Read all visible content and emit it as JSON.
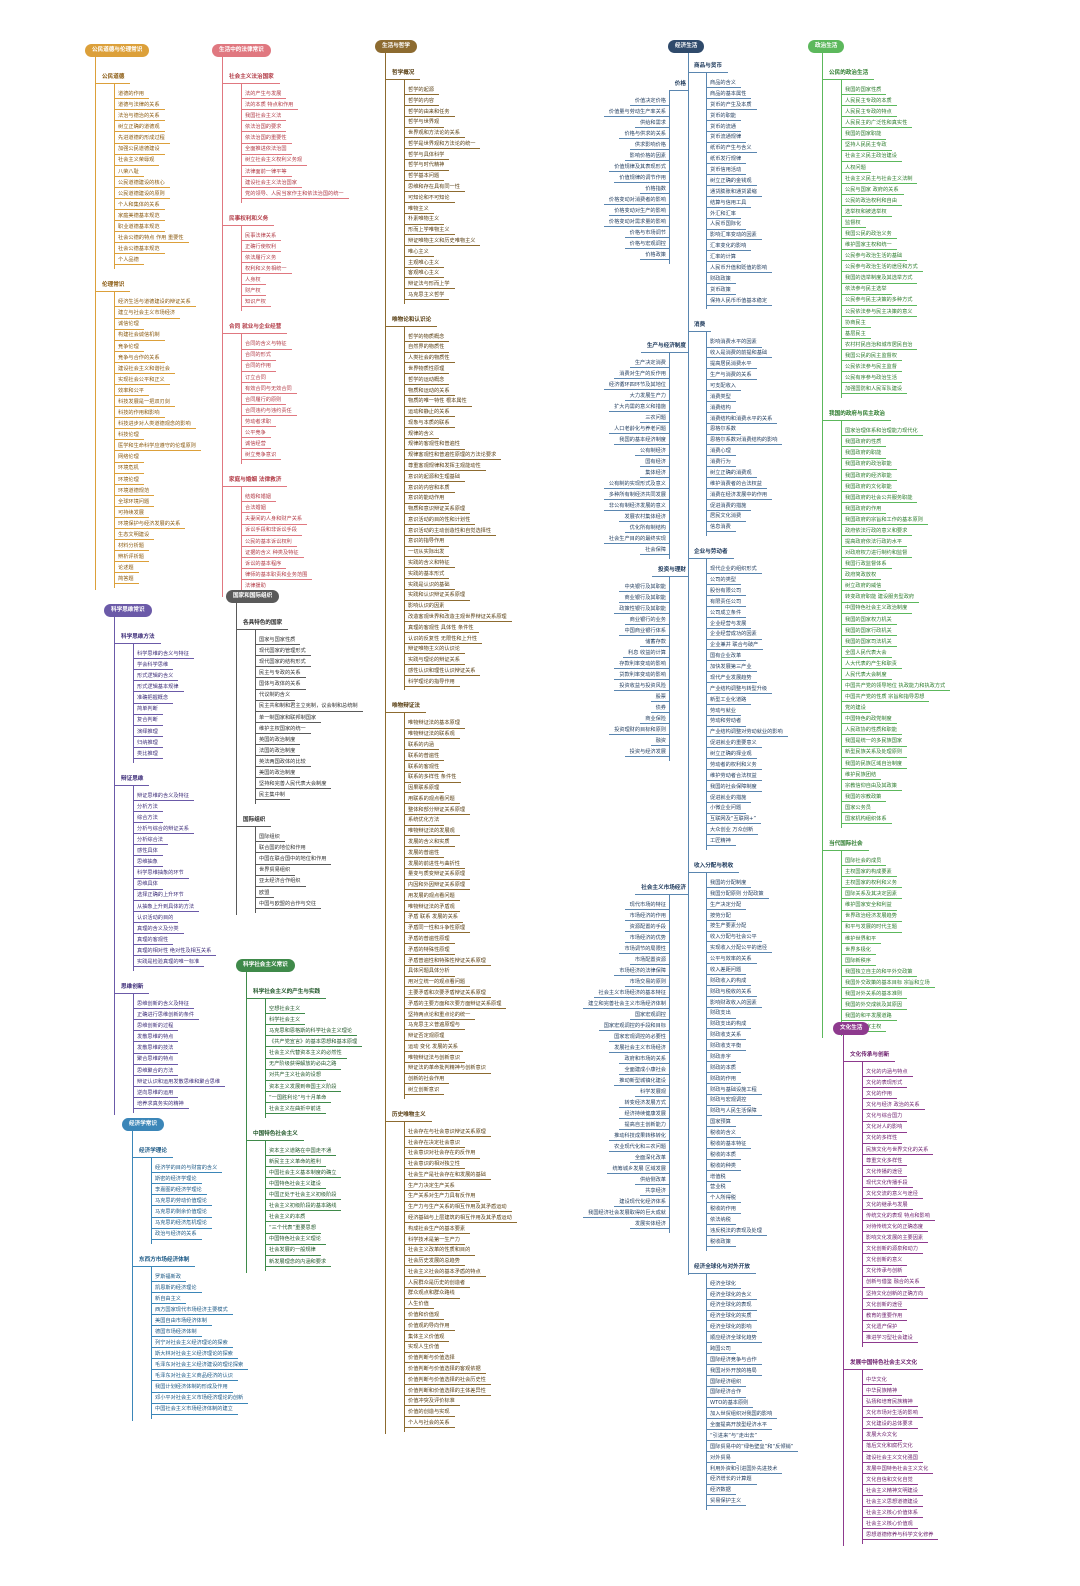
{
  "sections": {
    "ethics": {
      "title": "公民道德与伦理常识",
      "subs": [
        {
          "label": "公民道德",
          "items": [
            "道德的作用",
            "道德与法律的关系",
            "法治与德治的关系",
            "树立正确的道德观",
            "先进道德的形成过程",
            "加强公民道德建设",
            "社会主义荣辱观",
            "八荣八耻",
            "公民道德建设的核心",
            "公民道德建设的原则",
            "个人和集体的关系",
            "家庭美德基本规范",
            "职业道德基本规范",
            "社会公德的特点 作用 重要性",
            "社会公德基本规范",
            "个人品德"
          ]
        },
        {
          "label": "伦理常识",
          "items": [
            "经济生活与道德建设的辩证关系",
            "建立与社会主义市场经济",
            "诚信伦理",
            "构建社会诚信机制",
            "竞争伦理",
            "竞争与合作的关系",
            "建设社会主义和谐社会",
            "实现社会公平和正义",
            "效率和公平",
            "科技发展是一把双刃剑",
            "科技的作用和影响",
            "科技进步对人类道德观念的影响",
            "科技伦理",
            "医学和生命科学应遵守的伦理原则",
            "网络伦理",
            "环境危机",
            "环境伦理",
            "环境道德规范",
            "全球环境问题",
            "可持续发展",
            "环境保护与经济发展的关系",
            "生态文明建设",
            "材料分析题",
            "辨析评析题",
            "论述题",
            "简答题"
          ]
        }
      ]
    },
    "law": {
      "title": "生活中的法律常识",
      "subs": [
        {
          "label": "社会主义法治国家",
          "items": [
            "法的产生与发展",
            "法的本质 特点和作用",
            "我国社会主义法",
            "依法治国的要求",
            "依法治国的重要性",
            "全面推进依法治国",
            "树立社会主义权利义务观",
            "法律面前一律平等",
            "建设社会主义法治国家",
            "党的领导、人民当家作主和依法治国的统一"
          ]
        },
        {
          "label": "民事权利和义务",
          "items": [
            "民事法律关系",
            "正确行使权利",
            "依法履行义务",
            "权利和义务相统一",
            "人身权",
            "财产权",
            "知识产权"
          ]
        },
        {
          "label": "合同 就业与企业经营",
          "items": [
            "合同的含义与特征",
            "合同的形式",
            "合同的作用",
            "订立合同",
            "有效合同与无效合同",
            "合同履行的原则",
            "合同违约与违约责任",
            "劳动者求职",
            "公平竞争",
            "诚信经营",
            "树立竞争意识"
          ]
        },
        {
          "label": "家庭与婚姻 法律救济",
          "items": [
            "结婚和婚姻",
            "合法婚姻",
            "夫妻间的人身和财产关系",
            "诉讼手段和非诉讼手段",
            "公民的基本诉讼权利",
            "证据的含义 种类及特征",
            "诉讼的基本程序",
            "律师的基本职责和业务范围",
            "法律援助"
          ]
        }
      ]
    },
    "phil": {
      "title": "生活与哲学",
      "subs": [
        {
          "label": "哲学概况",
          "items": [
            "哲学的起源",
            "哲学的内容",
            "哲学的由来和任务",
            "哲学与世界观",
            "世界观和方法论的关系",
            "哲学是世界观和方法论的统一",
            "哲学与具体科学",
            "哲学与时代精神",
            "哲学基本问题",
            "思维和存在具有同一性",
            "可知论和不可知论",
            "唯物主义",
            "朴素唯物主义",
            "形而上学唯物主义",
            "辩证唯物主义和历史唯物主义",
            "唯心主义",
            "主观唯心主义",
            "客观唯心主义",
            "辩证法与形而上学",
            "马克思主义哲学"
          ]
        },
        {
          "label": "唯物论和认识论",
          "items": [
            "哲学的物质概念",
            "自然界的物质性",
            "人类社会的物质性",
            "世界物质性原理",
            "哲学的运动概念",
            "物质和运动的关系",
            "物质的唯一特性 根本属性",
            "运动和静止的关系",
            "现象与本质的联系",
            "规律的含义",
            "规律的客观性和普遍性",
            "规律客观性和普遍性原理的方法论要求",
            "尊重客观规律和发挥主观能动性",
            "意识的起源和生理基础",
            "意识的内容和本质",
            "意识的能动作用",
            "物质和意识辩证关系原理",
            "意识活动的目的性和计划性",
            "意识活动的主动创造性和自觉选择性",
            "意识的指导作用",
            "一切从实际出发",
            "实践的含义和特征",
            "实践的基本形式",
            "实践是认识的基础",
            "实践和认识辩证关系原理",
            "影响认识的因素",
            "改造客观世界和改造主观世界辩证关系原理",
            "真理的客观性 具体性 条件性",
            "认识的反复性 无限性和上升性",
            "辩证唯物主义的认识论",
            "实践与理论的辩证关系",
            "感性认识和理性认识辩证关系",
            "科学理论的指导作用"
          ]
        },
        {
          "label": "唯物辩证法",
          "items": [
            "唯物辩证法的基本原理",
            "唯物辩证法的联系观",
            "联系的内涵",
            "联系的普遍性",
            "联系的客观性",
            "联系的多样性 条件性",
            "因果联系原理",
            "用联系的观点看问题",
            "整体和部分辩证关系原理",
            "系统优化方法",
            "唯物辩证法的发展观",
            "发展的含义和实质",
            "发展的普遍性",
            "发展的前进性与曲折性",
            "量变与质变辩证关系原理",
            "内因和外因辩证关系原理",
            "用发展的观点看问题",
            "唯物辩证法的矛盾观",
            "矛盾 联系 发展的关系",
            "矛盾同一性和斗争性原理",
            "矛盾的普遍性原理",
            "矛盾的特殊性原理",
            "矛盾普遍性和特殊性辩证关系原理",
            "具体问题具体分析",
            "用对立统一的观点看问题",
            "主要矛盾和次要矛盾辩证关系原理",
            "矛盾的主要方面和次要方面辩证关系原理",
            "坚持两点论和重点论的统一",
            "马克思主义普遍原理与",
            "辩证否定观原理",
            "运动 变化 发展的关系",
            "唯物辩证法与创新意识",
            "辩证法的革命批判精神与创新意识",
            "创新的社会作用",
            "树立创新意识"
          ]
        },
        {
          "label": "历史唯物主义",
          "items": [
            "社会存在与社会意识辩证关系原理",
            "社会存在决定社会意识",
            "社会意识对社会存在的反作用",
            "社会意识的相对独立性",
            "社会生产是社会存在和发展的基础",
            "生产力决定生产关系",
            "生产关系对生产力具有反作用",
            "生产力与生产关系的相互作用及其矛盾运动",
            "经济基础与上层建筑的相互作用及其矛盾运动",
            "构成社会生产的基本要素",
            "科学技术是第一生产力",
            "社会主义改革的性质和目的",
            "社会历史发展的总趋势",
            "社会主义社会的基本矛盾的特点",
            "人民群众是历史的创造者",
            "群众观点和群众路线",
            "人生价值",
            "价值和价值观",
            "价值观的导向作用",
            "集体主义价值观",
            "实现人生价值",
            "价值判断与价值选择",
            "价值判断与价值选择的客观依据",
            "价值判断与价值选择的社会历史性",
            "价值判断和价值选择的主体差异性",
            "价值冲突及评价标准",
            "价值的创造与实现",
            "个人与社会的关系"
          ]
        }
      ]
    },
    "econ": {
      "title": "经济生活",
      "left": [
        {
          "label": "价格",
          "items": [
            "价值决定价格",
            "价值量与劳动生产率关系",
            "供给和需求",
            "价格与供求的关系",
            "供求影响价格",
            "影响价格的因素",
            "价值规律及其表现形式",
            "价值规律的调节作用",
            "价格指数",
            "价格变动对消费者的影响",
            "价格变动对生产的影响",
            "价格变动对需求量的影响",
            "价格与市场调节",
            "价格与宏观调控",
            "价格政策"
          ]
        },
        {
          "label": "生产与经济制度",
          "items": [
            "生产决定消费",
            "消费对生产的反作用",
            "经济循环四环节及其地位",
            "大力发展生产力",
            "扩大内需的意义和措施",
            "三农问题",
            "人口老龄化与养老问题",
            "我国的基本经济制度",
            "公有制经济",
            "国有经济",
            "集体经济",
            "公有制的实现形式及意义",
            "多种所有制经济共同发展",
            "非公有制经济发展的意义",
            "发展农村集体经济",
            "优化所有制结构",
            "社会生产目的的最终实现",
            "社会保障"
          ]
        },
        {
          "label": "投资与理财",
          "items": [
            "中央银行及其职能",
            "商业银行及其职能",
            "政策性银行及其职能",
            "商业银行的业务",
            "中国商业银行体系",
            "储蓄存款",
            "利息 收益的计算",
            "存款利率变动的影响",
            "贷款利率变动的影响",
            "投资收益与投资风险",
            "股票",
            "债券",
            "商业保险",
            "投资理财的目标和原则",
            "融资",
            "投资与经济发展"
          ]
        },
        {
          "label": "社会主义市场经济",
          "items": [
            "现代市场的特征",
            "市场经济的作用",
            "资源配置的手段",
            "市场经济的优势",
            "市场调节的局限性",
            "市场配置资源",
            "市场经济的法律保障",
            "市场交易的原则",
            "社会主义市场经济的基本特征",
            "建立和完善社会主义市场经济体制",
            "国家宏观调控",
            "国家宏观调控的手段和目标",
            "国家宏观调控的必要性",
            "发展社会主义市场经济",
            "政府和市场的关系",
            "全面建成小康社会",
            "推动新型城镇化建设",
            "科学发展观",
            "转变经济发展方式",
            "经济持续健康发展",
            "提高自主创新能力",
            "推动科技成果转移转化",
            "农业现代化和三农问题",
            "全面深化改革",
            "统筹城乡发展 区域发展",
            "供给侧改革",
            "共享经济",
            "建设现代化经济体系",
            "我国经济社会发展取得的巨大成就",
            "发展实体经济"
          ]
        }
      ],
      "right": [
        {
          "label": "商品与货币",
          "items": [
            "商品的含义",
            "商品的基本属性",
            "货币的产生及本质",
            "货币的职能",
            "货币的流通",
            "货币流通规律",
            "纸币的产生与含义",
            "纸币发行规律",
            "货币信用活动",
            "树立正确的金钱观",
            "通货膨胀和通货紧缩",
            "结算与信用工具",
            "外汇和汇率",
            "人民币国际化",
            "影响汇率变动的因素",
            "汇率变化的影响",
            "汇率的计算",
            "人民币升值和贬值的影响",
            "财政政策",
            "货币政策",
            "保持人民币币值基本稳定"
          ]
        },
        {
          "label": "消费",
          "items": [
            "影响消费水平的因素",
            "收入是消费的前提和基础",
            "提高居民消费水平",
            "生产与消费的关系",
            "可支配收入",
            "消费类型",
            "消费结构",
            "消费结构和消费水平的关系",
            "恩格尔系数",
            "恩格尔系数对消费结构的影响",
            "消费心理",
            "消费行为",
            "树立正确的消费观",
            "维护消费者的合法权益",
            "消费在经济发展中的作用",
            "促进消费的措施",
            "居民文化消费",
            "信息消费"
          ]
        },
        {
          "label": "企业与劳动者",
          "items": [
            "现代企业的组织形式",
            "公司的类型",
            "股份有限公司",
            "有限责任公司",
            "公司成立条件",
            "企业经营与发展",
            "企业经营成功的因素",
            "企业兼并 联合与破产",
            "国有企业改革",
            "加快发展第三产业",
            "现代产业发展趋势",
            "产业结构调整与转型升级",
            "新型工业化道路",
            "劳动与就业",
            "劳动和劳动者",
            "产业结构调整对劳动就业的影响",
            "促进就业的重要意义",
            "树立正确的择业观",
            "劳动者的权利和义务",
            "维护劳动者合法权益",
            "我国的社会保障制度",
            "促进就业的措施",
            "小微企业问题",
            "互联网及“互联网+”",
            "大众创业 万众创新",
            "工匠精神"
          ]
        },
        {
          "label": "收入分配与税收",
          "items": [
            "我国的分配制度",
            "我国分配原则 分配政策",
            "生产决定分配",
            "按劳分配",
            "按生产要素分配",
            "收入分配与社会公平",
            "实现收入分配公平的途径",
            "公平与效率的关系",
            "收入差距问题",
            "财政收入的构成",
            "财政与税收的关系",
            "影响财政收入的因素",
            "财政支出",
            "财政支出的构成",
            "财政收支关系",
            "财政收支平衡",
            "财政赤字",
            "财政的本质",
            "财政的作用",
            "财政与基础设施工程",
            "财政与宏观调控",
            "财政与人民生活保障",
            "国家预算",
            "税收的含义",
            "税收的基本特征",
            "税收的本质",
            "税收的种类",
            "增值税",
            "营业税",
            "个人所得税",
            "税收的作用",
            "依法纳税",
            "违反税法的表现及处理",
            "税收政策"
          ]
        },
        {
          "label": "经济全球化与对外开放",
          "items": [
            "经济全球化",
            "经济全球化的含义",
            "经济全球化的表现",
            "经济全球化的实质",
            "经济全球化的影响",
            "顺应经济全球化趋势",
            "跨国公司",
            "国际经济竞争与合作",
            "我国对外开放的格局",
            "国际经济组织",
            "国际经济合作",
            "WTO的基本原则",
            "加入世贸组织对我国的影响",
            "全面提高开放型经济水平",
            "“引进来”与“走出去”",
            "国际贸易中的“绿色壁垒”和“反倾销”",
            "对外贸易",
            "利用外资和引进国外先进技术",
            "经济增长的计算题",
            "经济数据",
            "贸易保护主义"
          ]
        }
      ]
    },
    "pol": {
      "title": "政治生活",
      "subs": [
        {
          "label": "公民的政治生活",
          "items": [
            "我国的国家性质",
            "人民民主专政的本质",
            "人民民主专政的特点",
            "人民民主的广泛性和真实性",
            "我国的国家职能",
            "坚持人民民主专政",
            "社会主义民主政治建设",
            "人权问题",
            "社会主义民主与社会主义法制",
            "公民与国家 政府的关系",
            "公民的政治权利和自由",
            "选举权和被选举权",
            "监督权",
            "我国公民的政治义务",
            "维护国家主权和统一",
            "公民参与政治生活的基础",
            "公民参与政治生活的途径和方式",
            "我国的选举制度及其选举方式",
            "依法参与民主选举",
            "公民参与民主决策的多种方式",
            "公民依法参与民主决策的意义",
            "协商民主",
            "基层民主",
            "农村村民自治和城市居民自治",
            "我国公民的民主监督权",
            "公民依法参与民主监督",
            "公民有序参与政治生活",
            "加强国防和人民军队建设"
          ]
        },
        {
          "label": "我国的政府与民主政治",
          "items": [
            "国家治理体系和治理能力现代化",
            "我国政府的性质",
            "我国政府的职能",
            "我国政府的政治职能",
            "我国政府的经济职能",
            "我国政府的文化职能",
            "我国政府的社会公共服务职能",
            "我国政府的作用",
            "我国政府的宗旨和工作的基本原则",
            "政府依法行政的意义和要求",
            "提高政府依法行政的水平",
            "对政府权力进行制约和监督",
            "我国行政监督体系",
            "政府简政放权",
            "树立政府的威信",
            "转变政府职能 建设服务型政府",
            "中国特色社会主义政治制度",
            "我国的国家权力机关",
            "我国的国家行政机关",
            "我国的国家司法机关",
            "全国人民代表大会",
            "人大代表的产生和职责",
            "人民代表大会制度",
            "中国共产党的领导地位 执政能力和执政方式",
            "中国共产党的性质 宗旨和指导思想",
            "党的建设",
            "中国特色的政党制度",
            "人民政协的性质和职能",
            "我国是统一的多民族国家",
            "新型民族关系及处理原则",
            "我国的民族区域自治制度",
            "维护民族团结",
            "宗教信仰自由及其政策",
            "我国的宗教政策",
            "国家公务员",
            "国家机构组织体系"
          ]
        },
        {
          "label": "当代国际社会",
          "items": [
            "国际社会的成员",
            "主权国家的构成要素",
            "主权国家的权利和义务",
            "国际关系及其决定因素",
            "维护国家安全和利益",
            "世界政治经济发展趋势",
            "和平与发展的时代主题",
            "维护世界和平",
            "世界多极化",
            "国际新秩序",
            "我国独立自主的和平外交政策",
            "我国外交政策的基本目标 宗旨和立场",
            "我国对外关系的基本准则",
            "我国的外交成就及其原因",
            "我国的和平发展道路",
            "我国的国家主权"
          ]
        }
      ]
    },
    "culture": {
      "title": "文化生活",
      "subs": [
        {
          "label": "文化传承与创新",
          "items": [
            "文化的内涵与特点",
            "文化的表现形式",
            "文化的作用",
            "文化与经济 政治的关系",
            "文化与综合国力",
            "文化对人的影响",
            "文化的多样性",
            "民族文化与世界文化的关系",
            "尊重文化多样性",
            "文化传播的途径",
            "现代文化传播手段",
            "文化交流的意义与途径",
            "文化的继承与发展",
            "传统文化的表现 特点和影响",
            "对待传统文化的正确态度",
            "影响文化发展的主要因素",
            "文化创新的源泉和动力",
            "文化创新的意义",
            "文化传承与创新",
            "创新与借鉴 融合的关系",
            "坚持文化创新的正确方向",
            "文化创新的途径",
            "教育的重要作用",
            "文化遗产保护",
            "推进学习型社会建设"
          ]
        },
        {
          "label": "发展中国特色社会主义文化",
          "items": [
            "中华文化",
            "中华民族精神",
            "弘扬和培育民族精神",
            "文化市场对生活的影响",
            "文化建设的总体要求",
            "发展大众文化",
            "落后文化和腐朽文化",
            "建设社会主义文化强国",
            "发展中国特色社会主义文化",
            "文化自信和文化自觉",
            "社会主义精神文明建设",
            "社会主义思想道德建设",
            "社会主义核心价值体系",
            "社会主义核心价值观",
            "思想道德修养与科学文化修养"
          ]
        }
      ]
    },
    "sci": {
      "title": "科学思维常识",
      "subs": [
        {
          "label": "科学思维方法",
          "items": [
            "科学思维的含义与特征",
            "学会科学思维",
            "形式逻辑的含义",
            "形式逻辑基本规律",
            "准确把握概念",
            "简单判断",
            "复合判断",
            "演绎推理",
            "归纳推理",
            "类比推理"
          ]
        },
        {
          "label": "辩证思维",
          "items": [
            "辩证思维的含义及特征",
            "分析方法",
            "综合方法",
            "分析与综合的辩证关系",
            "分析综合法",
            "感性具体",
            "思维抽象",
            "科学思维抽象的环节",
            "思维具体",
            "选择正确的上升环节",
            "从抽象上升到具体的方法",
            "认识活动的目的",
            "真理的含义及分类",
            "真理的客观性",
            "真理的相对性 绝对性及相互关系",
            "实践是检验真理的唯一标准"
          ]
        },
        {
          "label": "思维创新",
          "items": [
            "思维创新的含义及特征",
            "正确进行思维创新的条件",
            "思维创新的过程",
            "发散思维的特点",
            "发散思维的技法",
            "聚合思维的特点",
            "思维聚合的方法",
            "辩证认识和运用发散思维和聚合思维",
            "逆向思维的运用",
            "培养求真务实的精神"
          ]
        }
      ]
    },
    "state": {
      "title": "国家和国际组织",
      "subs": [
        {
          "label": "各具特色的国家",
          "items": [
            "国家与国家性质",
            "现代国家的管理形式",
            "现代国家的结构形式",
            "民主与专政的关系",
            "国体与政体的关系",
            "代议制的含义",
            "民主共和制和君主立宪制，议会制和总统制",
            "单一制国家和联邦制国家",
            "维护主权国家的统一",
            "英国的政治制度",
            "法国的政治制度",
            "英法两国政体的比较",
            "美国的政治制度",
            "坚持和完善人民代表大会制度",
            "民主集中制"
          ]
        },
        {
          "label": "国际组织",
          "items": [
            "国际组织",
            "联合国的地位和作用",
            "中国在联合国中的地位和作用",
            "世界贸易组织",
            "亚太经济合作组织",
            "欧盟",
            "中国与欧盟的合作与交往"
          ]
        }
      ]
    },
    "socialism": {
      "title": "科学社会主义常识",
      "subs": [
        {
          "label": "科学社会主义的产生与实践",
          "items": [
            "空想社会主义",
            "科学社会主义",
            "马克思和恩格斯的科学社会主义理论",
            "《共产党宣言》的基本思想和基本原理",
            "社会主义代替资本主义的必然性",
            "无产阶级获得解放的必由之路",
            "对共产主义社会的设想",
            "资本主义发展到帝国主义阶段",
            "“一国胜利论”与十月革命",
            "社会主义在曲折中前进"
          ]
        },
        {
          "label": "中国特色社会主义",
          "items": [
            "资本主义道路在中国走不通",
            "新民主主义革命的胜利",
            "中国社会主义基本制度的确立",
            "中国特色社会主义建设",
            "中国正处于社会主义初级阶段",
            "社会主义初级阶段的基本路线",
            "社会主义的本质",
            "“三个代表”重要思想",
            "中国特色社会主义理论",
            "社会发展的一般规律",
            "新发展理念的内涵和要求"
          ]
        }
      ]
    },
    "econtheory": {
      "title": "经济学常识",
      "subs": [
        {
          "label": "经济学理论",
          "items": [
            "经济学的目的与财富的含义",
            "斯密的经济学理论",
            "李嘉图的经济学理论",
            "马克思的劳动价值理论",
            "马克思的剩余价值理论",
            "马克思的经济危机理论",
            "政治与经济的关系"
          ]
        },
        {
          "label": "东西方市场经济体制",
          "items": [
            "罗斯福新政",
            "凯恩斯的经济理论",
            "新自由主义",
            "西方国家现代市场经济主要模式",
            "美国自由市场经济体制",
            "德国市场经济体制",
            "列宁对社会主义经济理论的探索",
            "斯大林对社会主义经济理论的探索",
            "毛泽东对社会主义经济建设的理论探索",
            "毛泽东对社会主义商品经济的认识",
            "我国计划经济体制的形成及作用",
            "邓小平对社会主义市场经济理论的创新",
            "中国社会主义市场经济体制的建立"
          ]
        }
      ]
    }
  }
}
